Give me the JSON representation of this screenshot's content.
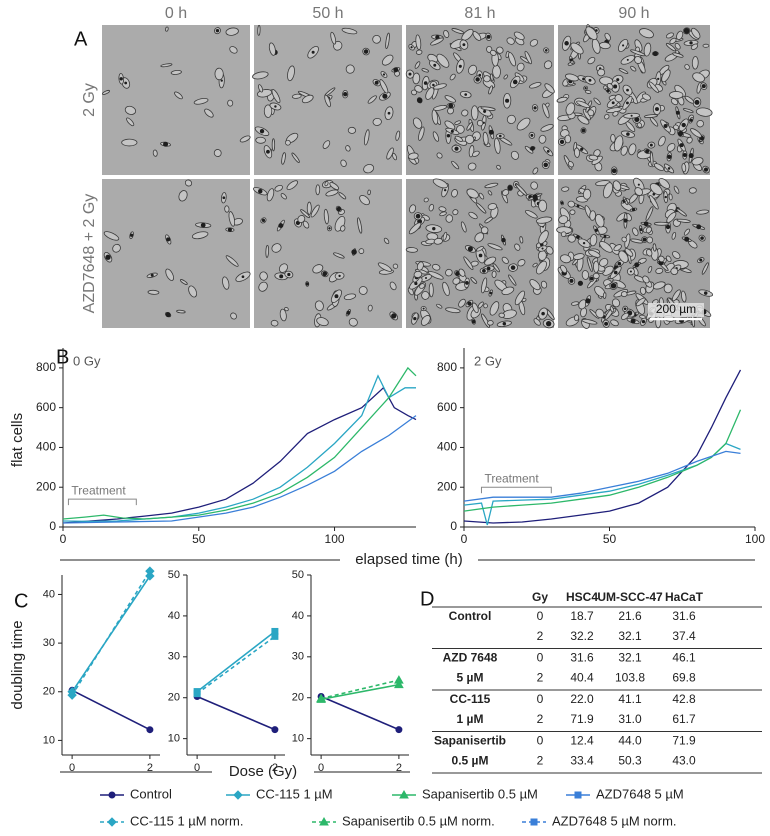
{
  "panel_a": {
    "letter": "A",
    "columns": [
      "0 h",
      "50 h",
      "81 h",
      "90 h"
    ],
    "rows": [
      "2 Gy",
      "AZD7648 + 2 Gy"
    ],
    "scale_bar": "200 µm"
  },
  "panel_b": {
    "letter": "B",
    "y_label": "flat cells",
    "x_label": "elapsed time (h)"
  },
  "panel_c": {
    "letter": "C",
    "y_label": "doubling time",
    "x_label": "Dose (Gy)"
  },
  "chart_data": [
    {
      "type": "line",
      "subtitle": "0 Gy",
      "annotation": {
        "text": "Treatment",
        "x": [
          2,
          27
        ],
        "y": 140
      },
      "xlim": [
        0,
        130
      ],
      "xticks": [
        0,
        50,
        100
      ],
      "ylim": [
        0,
        900
      ],
      "yticks": [
        0,
        200,
        400,
        600,
        800
      ],
      "series": [
        {
          "name": "Control",
          "color": "#1f1f7a",
          "x": [
            0,
            10,
            20,
            30,
            40,
            50,
            60,
            70,
            80,
            90,
            100,
            110,
            118,
            122,
            127,
            130
          ],
          "values": [
            20,
            30,
            40,
            55,
            70,
            100,
            140,
            220,
            330,
            470,
            540,
            600,
            700,
            600,
            560,
            540
          ]
        },
        {
          "name": "CC-115 1 µM",
          "color": "#2aa6c4",
          "x": [
            0,
            10,
            20,
            30,
            40,
            50,
            60,
            70,
            80,
            90,
            100,
            110,
            116,
            120,
            126,
            130
          ],
          "values": [
            30,
            28,
            30,
            40,
            50,
            70,
            100,
            140,
            200,
            300,
            420,
            560,
            760,
            650,
            700,
            700
          ]
        },
        {
          "name": "Sapanisertib 0.5 µM",
          "color": "#2db86a",
          "x": [
            0,
            8,
            15,
            22,
            30,
            40,
            50,
            60,
            70,
            80,
            90,
            100,
            110,
            120,
            127,
            130
          ],
          "values": [
            40,
            50,
            60,
            45,
            40,
            50,
            60,
            85,
            120,
            170,
            250,
            350,
            500,
            650,
            800,
            760
          ]
        },
        {
          "name": "AZD7648 5 µM",
          "color": "#3a7fd8",
          "x": [
            0,
            20,
            40,
            60,
            70,
            80,
            90,
            100,
            110,
            120,
            130
          ],
          "values": [
            20,
            25,
            30,
            70,
            100,
            150,
            210,
            280,
            380,
            460,
            560
          ]
        }
      ]
    },
    {
      "type": "line",
      "subtitle": "2 Gy",
      "annotation": {
        "text": "Treatment",
        "x": [
          6,
          30
        ],
        "y": 200
      },
      "xlim": [
        0,
        100
      ],
      "xticks": [
        0,
        50,
        100
      ],
      "ylim": [
        0,
        900
      ],
      "yticks": [
        0,
        200,
        400,
        600,
        800
      ],
      "series": [
        {
          "name": "Control",
          "color": "#1f1f7a",
          "x": [
            0,
            10,
            20,
            30,
            40,
            50,
            60,
            70,
            80,
            85,
            90,
            95
          ],
          "values": [
            30,
            20,
            25,
            40,
            60,
            80,
            120,
            200,
            360,
            500,
            650,
            790
          ]
        },
        {
          "name": "CC-115 1 µM",
          "color": "#2aa6c4",
          "x": [
            0,
            6,
            8,
            10,
            20,
            30,
            40,
            50,
            60,
            70,
            80,
            85,
            90,
            95
          ],
          "values": [
            110,
            120,
            10,
            130,
            135,
            140,
            160,
            180,
            215,
            260,
            310,
            350,
            420,
            390
          ]
        },
        {
          "name": "Sapanisertib 0.5 µM",
          "color": "#2db86a",
          "x": [
            0,
            10,
            20,
            30,
            40,
            50,
            60,
            70,
            80,
            85,
            90,
            95
          ],
          "values": [
            80,
            100,
            110,
            120,
            140,
            160,
            200,
            250,
            310,
            350,
            420,
            590
          ]
        },
        {
          "name": "AZD7648 5 µM",
          "color": "#3a7fd8",
          "x": [
            0,
            10,
            20,
            30,
            40,
            50,
            60,
            70,
            80,
            90,
            95
          ],
          "values": [
            130,
            150,
            150,
            150,
            170,
            200,
            230,
            270,
            330,
            380,
            370
          ]
        }
      ]
    },
    {
      "type": "line",
      "xlim": [
        -0.26,
        2.26
      ],
      "xticks": [
        0,
        2
      ],
      "ylim": [
        7,
        44
      ],
      "yticks": [
        10,
        20,
        30,
        40
      ],
      "series": [
        {
          "name": "Control",
          "color": "#1f1f7a",
          "marker": "circle",
          "x": [
            0,
            2
          ],
          "values": [
            20.3,
            12.2
          ]
        },
        {
          "name": "CC-115 1 µM",
          "color": "#2aa6c4",
          "marker": "diamond",
          "x": [
            0,
            2
          ],
          "values": [
            20,
            43.8
          ]
        },
        {
          "name": "CC-115 1 µM norm.",
          "color": "#2aa6c4",
          "marker": "diamond",
          "dash": true,
          "x": [
            0,
            2
          ],
          "values": [
            19.3,
            44.8
          ]
        }
      ]
    },
    {
      "type": "line",
      "xlim": [
        -0.26,
        2.26
      ],
      "xticks": [
        0,
        2
      ],
      "ylim": [
        6,
        50
      ],
      "yticks": [
        10,
        20,
        30,
        40,
        50
      ],
      "series": [
        {
          "name": "Control",
          "color": "#1f1f7a",
          "marker": "circle",
          "x": [
            0,
            2
          ],
          "values": [
            20.3,
            12.2
          ]
        },
        {
          "name": "AZD7648 5 µM",
          "color": "#2aa6c4",
          "marker": "square",
          "x": [
            0,
            2
          ],
          "values": [
            21.5,
            36.2
          ]
        },
        {
          "name": "AZD7648 5 µM norm.",
          "color": "#2aa6c4",
          "marker": "square",
          "dash": true,
          "x": [
            0,
            2
          ],
          "values": [
            21,
            35
          ]
        }
      ]
    },
    {
      "type": "line",
      "xlim": [
        -0.26,
        2.26
      ],
      "xticks": [
        0,
        2
      ],
      "ylim": [
        6,
        50
      ],
      "yticks": [
        10,
        20,
        30,
        40,
        50
      ],
      "series": [
        {
          "name": "Control",
          "color": "#1f1f7a",
          "marker": "circle",
          "x": [
            0,
            2
          ],
          "values": [
            20.3,
            12.2
          ]
        },
        {
          "name": "Sapanisertib 0.5 µM",
          "color": "#2db86a",
          "marker": "triangle",
          "x": [
            0,
            2
          ],
          "values": [
            19.6,
            23.2
          ]
        },
        {
          "name": "Sapanisertib 0.5 µM norm.",
          "color": "#2db86a",
          "marker": "triangle",
          "dash": true,
          "x": [
            0,
            2
          ],
          "values": [
            19.8,
            24.3
          ]
        }
      ]
    }
  ],
  "legend": [
    {
      "name": "Control",
      "color": "#1f1f7a",
      "marker": "circle"
    },
    {
      "name": "CC-115 1 µM",
      "color": "#2aa6c4",
      "marker": "diamond"
    },
    {
      "name": "Sapanisertib 0.5 µM",
      "color": "#2db86a",
      "marker": "triangle"
    },
    {
      "name": "AZD7648 5 µM",
      "color": "#3a7fd8",
      "marker": "square"
    },
    {
      "name": "CC-115 1 µM norm.",
      "color": "#2aa6c4",
      "marker": "diamond",
      "dash": true
    },
    {
      "name": "Sapanisertib 0.5 µM norm.",
      "color": "#2db86a",
      "marker": "triangle",
      "dash": true
    },
    {
      "name": "AZD7648 5 µM norm.",
      "color": "#3a7fd8",
      "marker": "square",
      "dash": true
    }
  ],
  "table": {
    "letter": "D",
    "header": [
      "Gy",
      "HSC4",
      "UM-SCC-47",
      "HaCaT"
    ],
    "groups": [
      {
        "label": [
          "Control"
        ],
        "rows": [
          [
            "0",
            "18.7",
            "21.6",
            "31.6"
          ],
          [
            "2",
            "32.2",
            "32.1",
            "37.4"
          ]
        ]
      },
      {
        "label": [
          "AZD 7648",
          "5 µM"
        ],
        "rows": [
          [
            "0",
            "31.6",
            "32.1",
            "46.1"
          ],
          [
            "2",
            "40.4",
            "103.8",
            "69.8"
          ]
        ]
      },
      {
        "label": [
          "CC-115",
          "1 µM"
        ],
        "rows": [
          [
            "0",
            "22.0",
            "41.1",
            "42.8"
          ],
          [
            "2",
            "71.9",
            "31.0",
            "61.7"
          ]
        ]
      },
      {
        "label": [
          "Sapanisertib",
          "0.5 µM"
        ],
        "rows": [
          [
            "0",
            "12.4",
            "44.0",
            "71.9"
          ],
          [
            "2",
            "33.4",
            "50.3",
            "43.0"
          ]
        ]
      }
    ]
  }
}
